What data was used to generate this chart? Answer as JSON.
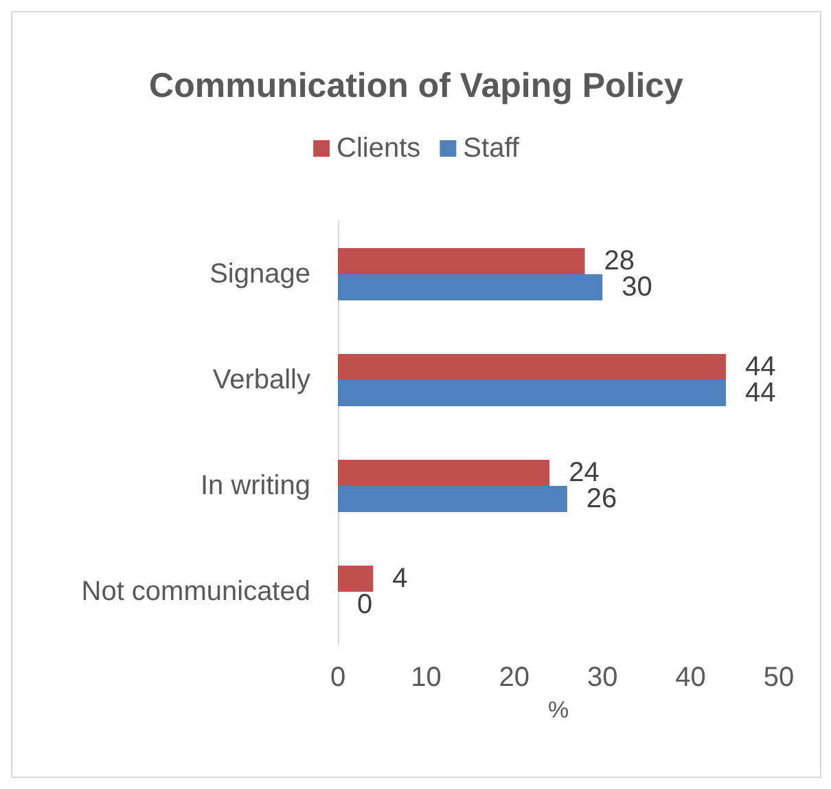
{
  "chart_data": {
    "type": "bar",
    "orientation": "horizontal",
    "title": "Communication of Vaping Policy",
    "xlabel": "%",
    "categories": [
      "Signage",
      "Verbally",
      "In writing",
      "Not communicated"
    ],
    "series": [
      {
        "name": "Clients",
        "color": "#c0504d",
        "values": [
          28,
          44,
          24,
          4
        ]
      },
      {
        "name": "Staff",
        "color": "#4f81bd",
        "values": [
          30,
          44,
          26,
          0
        ]
      }
    ],
    "xlim": [
      0,
      50
    ],
    "xticks": [
      0,
      10,
      20,
      30,
      40,
      50
    ],
    "grid": false,
    "legend": "top",
    "data_labels": true
  }
}
